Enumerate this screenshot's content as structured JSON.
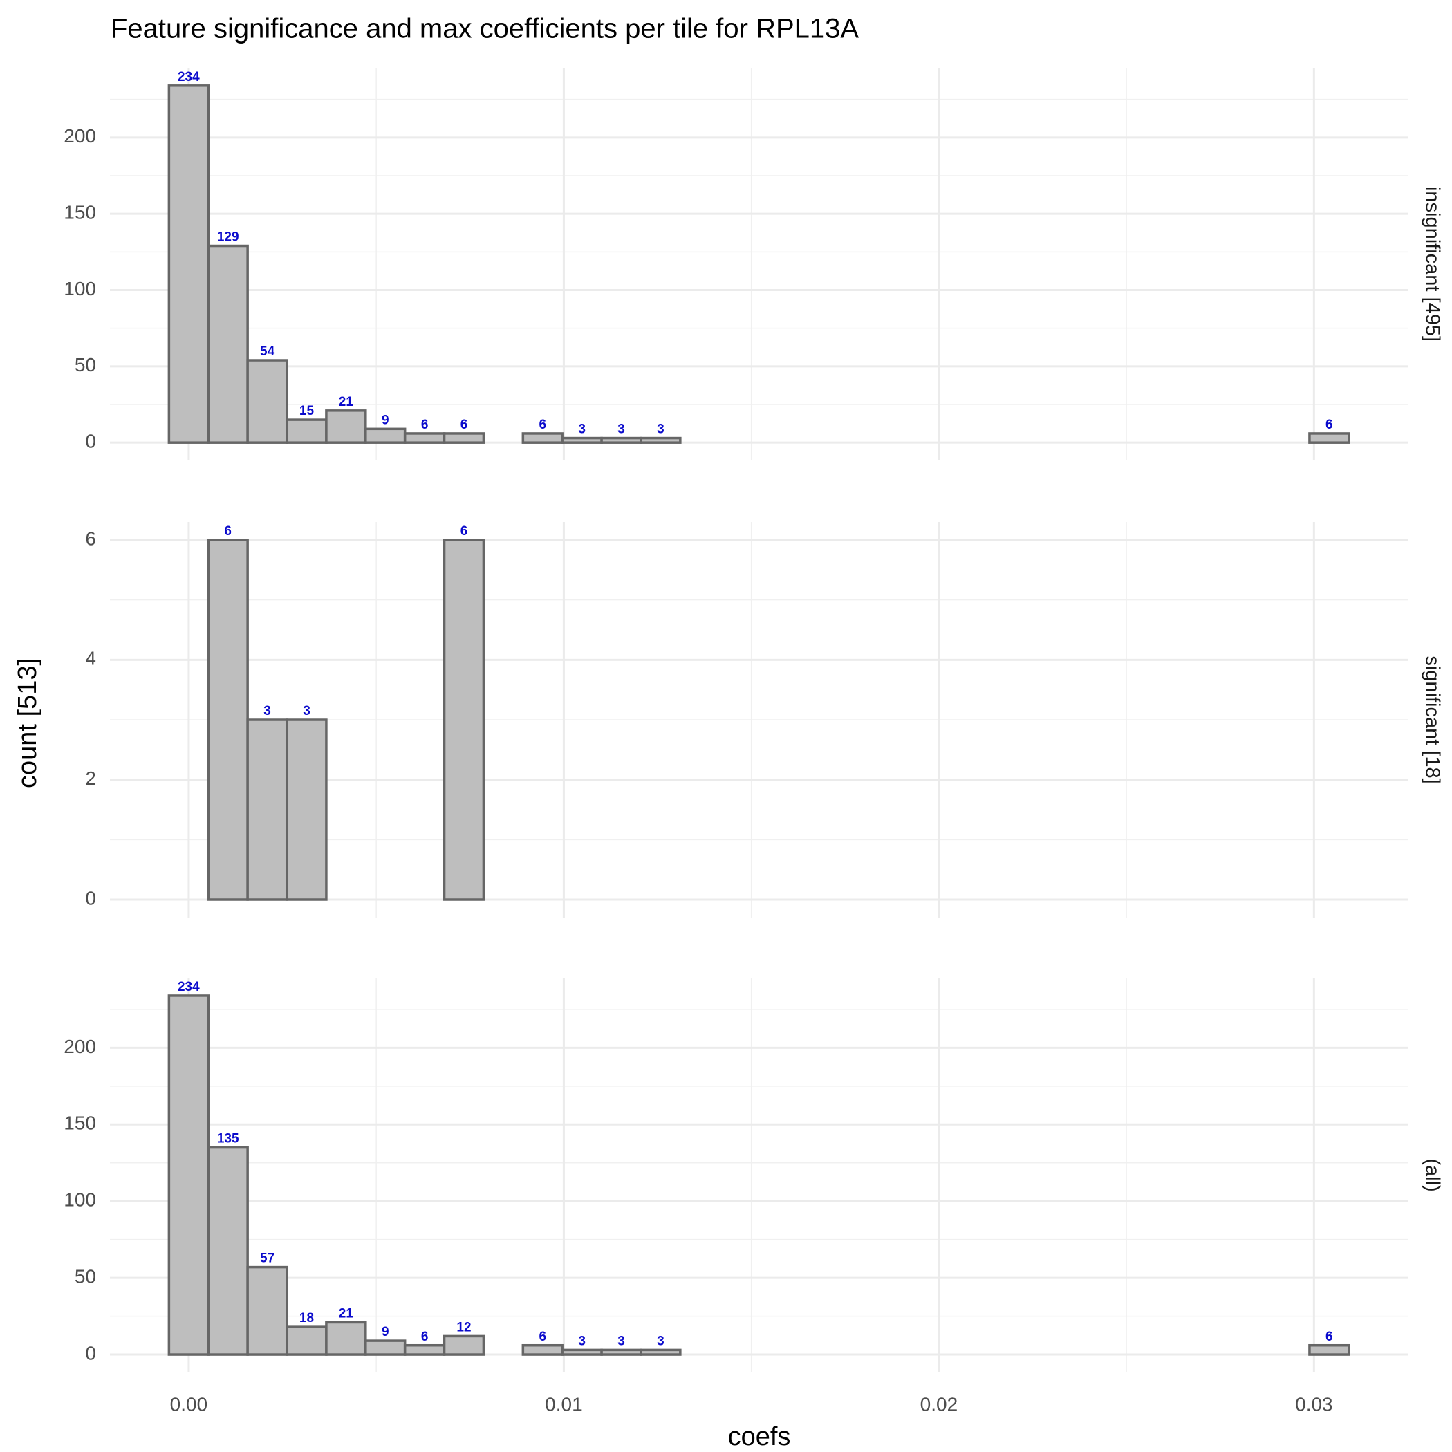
{
  "chart_data": {
    "type": "histogram",
    "title": "Feature significance and max coefficients per tile for RPL13A",
    "x_label": "coefs",
    "y_label": "count [513]",
    "bins": [
      -0.000526,
      0.000523,
      0.001571,
      0.00262,
      0.003668,
      0.004717,
      0.005765,
      0.006814,
      0.007862,
      0.008911,
      0.009959,
      0.011008,
      0.012056,
      0.013105,
      0.014153,
      0.015202,
      0.01625,
      0.017299,
      0.018347,
      0.019396,
      0.020444,
      0.021493,
      0.022541,
      0.02359,
      0.024638,
      0.025687,
      0.026735,
      0.027784,
      0.028832,
      0.029881,
      0.030929
    ],
    "xlim": [
      -0.0021,
      0.0325
    ],
    "xticks": [
      {
        "value": 0,
        "label": "0.00"
      },
      {
        "value": 0.01,
        "label": "0.01"
      },
      {
        "value": 0.02,
        "label": "0.02"
      },
      {
        "value": 0.03,
        "label": "0.03"
      }
    ],
    "xminor": [
      0.005,
      0.015,
      0.025
    ],
    "color": "#bebebe",
    "edge_color": "#666666",
    "label_color": "#0a0acc",
    "grid": true,
    "facets": [
      {
        "label": "insignificant [495]",
        "values": [
          234,
          129,
          54,
          15,
          21,
          9,
          6,
          6,
          0,
          6,
          3,
          3,
          3,
          0,
          0,
          0,
          0,
          0,
          0,
          0,
          0,
          0,
          0,
          0,
          0,
          0,
          0,
          0,
          0,
          6
        ],
        "ylim": [
          -11.7,
          245.7
        ],
        "yticks": [
          0,
          50,
          100,
          150,
          200
        ],
        "yminor": [
          25,
          75,
          125,
          175,
          225
        ]
      },
      {
        "label": "significant [18]",
        "values": [
          0,
          6,
          3,
          3,
          0,
          0,
          0,
          6,
          0,
          0,
          0,
          0,
          0,
          0,
          0,
          0,
          0,
          0,
          0,
          0,
          0,
          0,
          0,
          0,
          0,
          0,
          0,
          0,
          0,
          0
        ],
        "ylim": [
          -0.3,
          6.3
        ],
        "yticks": [
          0,
          2,
          4,
          6
        ],
        "yminor": [
          1,
          3,
          5
        ]
      },
      {
        "label": "(all)",
        "values": [
          234,
          135,
          57,
          18,
          21,
          9,
          6,
          12,
          0,
          6,
          3,
          3,
          3,
          0,
          0,
          0,
          0,
          0,
          0,
          0,
          0,
          0,
          0,
          0,
          0,
          0,
          0,
          0,
          0,
          6
        ],
        "ylim": [
          -11.7,
          245.7
        ],
        "yticks": [
          0,
          50,
          100,
          150,
          200
        ],
        "yminor": [
          25,
          75,
          125,
          175,
          225
        ]
      }
    ]
  }
}
